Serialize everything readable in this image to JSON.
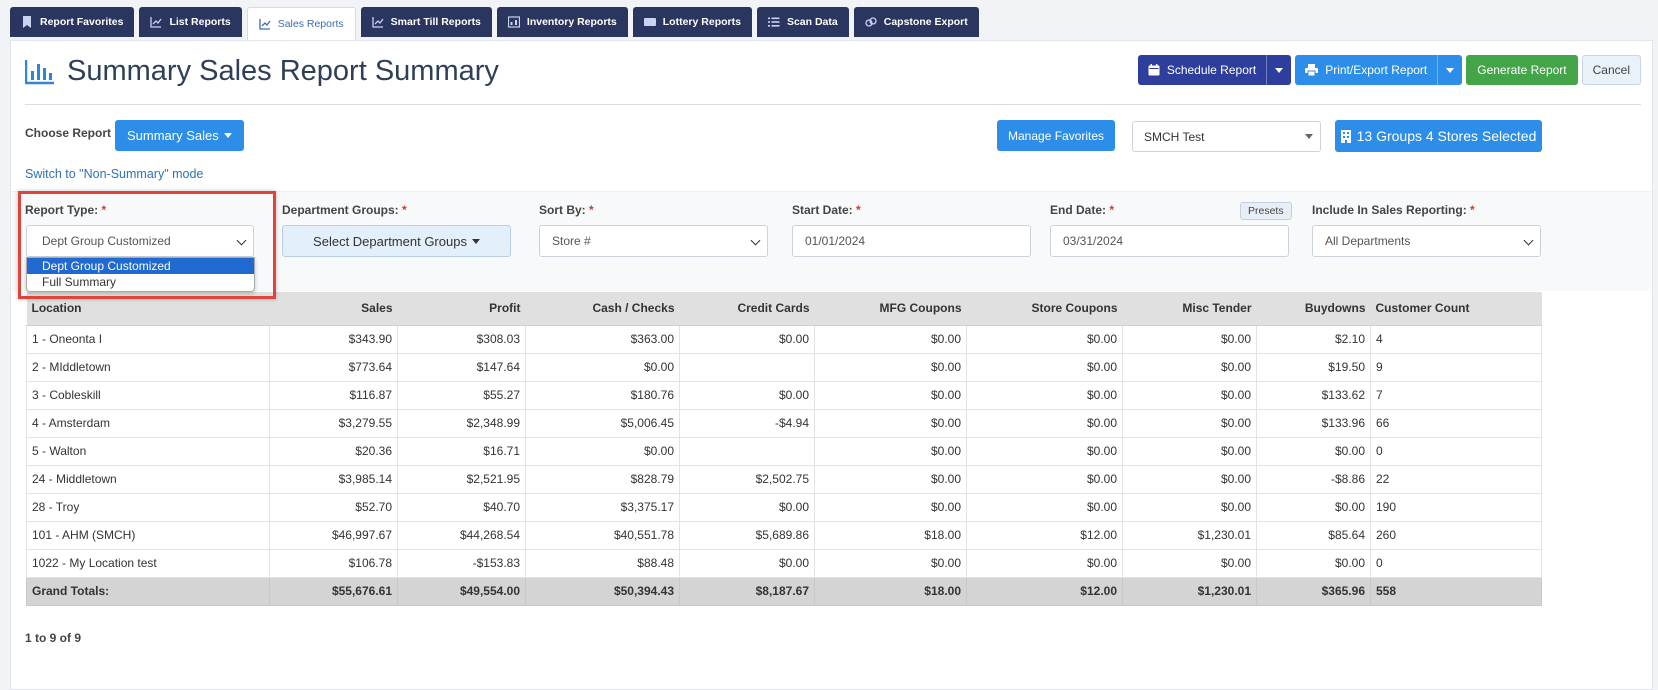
{
  "tabs": [
    {
      "label": "Report Favorites",
      "icon": "bookmark-icon"
    },
    {
      "label": "List Reports",
      "icon": "line-chart-icon"
    },
    {
      "label": "Sales Reports",
      "icon": "line-chart-icon",
      "active": true
    },
    {
      "label": "Smart Till Reports",
      "icon": "line-chart-icon"
    },
    {
      "label": "Inventory Reports",
      "icon": "inventory-icon"
    },
    {
      "label": "Lottery Reports",
      "icon": "ticket-icon"
    },
    {
      "label": "Scan Data",
      "icon": "list-icon"
    },
    {
      "label": "Capstone Export",
      "icon": "link-icon"
    }
  ],
  "page": {
    "title": "Summary Sales Report Summary",
    "schedule_label": "Schedule Report",
    "print_label": "Print/Export Report",
    "generate_label": "Generate Report",
    "cancel_label": "Cancel"
  },
  "choose": {
    "label": "Choose Report",
    "button": "Summary Sales",
    "switch_link": "Switch to \"Non-Summary\" mode",
    "manage_favorites": "Manage Favorites",
    "store_select": "SMCH Test",
    "groups_button": "13 Groups 4 Stores Selected"
  },
  "filters": {
    "report_type_label": "Report Type:",
    "report_type_value": "Dept Group Customized",
    "report_type_options": [
      "Dept Group Customized",
      "Full Summary"
    ],
    "dept_groups_label": "Department Groups:",
    "dept_groups_button": "Select Department Groups",
    "sort_by_label": "Sort By:",
    "sort_by_value": "Store #",
    "start_date_label": "Start Date:",
    "start_date_value": "01/01/2024",
    "end_date_label": "End Date:",
    "end_date_value": "03/31/2024",
    "presets_label": "Presets",
    "include_label": "Include In Sales Reporting:",
    "include_value": "All Departments",
    "required_mark": "*"
  },
  "table": {
    "columns": [
      "Location",
      "Sales",
      "Profit",
      "Cash / Checks",
      "Credit Cards",
      "MFG Coupons",
      "Store Coupons",
      "Misc Tender",
      "Buydowns",
      "Customer Count"
    ],
    "rows": [
      [
        "1 - Oneonta I",
        "$343.90",
        "$308.03",
        "$363.00",
        "$0.00",
        "$0.00",
        "$0.00",
        "$0.00",
        "$2.10",
        "4"
      ],
      [
        "2 - MIddletown",
        "$773.64",
        "$147.64",
        "$0.00",
        "",
        "$0.00",
        "$0.00",
        "$0.00",
        "$19.50",
        "9"
      ],
      [
        "3 - Cobleskill",
        "$116.87",
        "$55.27",
        "$180.76",
        "$0.00",
        "$0.00",
        "$0.00",
        "$0.00",
        "$133.62",
        "7"
      ],
      [
        "4 - Amsterdam",
        "$3,279.55",
        "$2,348.99",
        "$5,006.45",
        "-$4.94",
        "$0.00",
        "$0.00",
        "$0.00",
        "$133.96",
        "66"
      ],
      [
        "5 - Walton",
        "$20.36",
        "$16.71",
        "$0.00",
        "",
        "$0.00",
        "$0.00",
        "$0.00",
        "$0.00",
        "0"
      ],
      [
        "24 - Middletown",
        "$3,985.14",
        "$2,521.95",
        "$828.79",
        "$2,502.75",
        "$0.00",
        "$0.00",
        "$0.00",
        "-$8.86",
        "22"
      ],
      [
        "28 - Troy",
        "$52.70",
        "$40.70",
        "$3,375.17",
        "$0.00",
        "$0.00",
        "$0.00",
        "$0.00",
        "$0.00",
        "190"
      ],
      [
        "101 - AHM (SMCH)",
        "$46,997.67",
        "$44,268.54",
        "$40,551.78",
        "$5,689.86",
        "$18.00",
        "$12.00",
        "$1,230.01",
        "$85.64",
        "260"
      ],
      [
        "1022 - My Location test",
        "$106.78",
        "-$153.83",
        "$88.48",
        "$0.00",
        "$0.00",
        "$0.00",
        "$0.00",
        "$0.00",
        "0"
      ]
    ],
    "totals": [
      "Grand Totals:",
      "$55,676.61",
      "$49,554.00",
      "$50,394.43",
      "$8,187.67",
      "$18.00",
      "$12.00",
      "$1,230.01",
      "$365.96",
      "558"
    ]
  },
  "pager": "1 to 9 of 9",
  "colors": {
    "navy": "#2a3560",
    "blue": "#2c8ee8",
    "green": "#43a547",
    "highlight": "#e0433a",
    "selected_option": "#1f69d1"
  }
}
